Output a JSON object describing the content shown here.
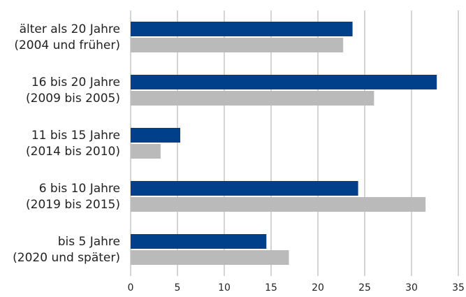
{
  "chart_data": {
    "type": "hbar",
    "categories": [
      [
        "älter als 20 Jahre",
        "(2004 und früher)"
      ],
      [
        "16 bis 20 Jahre",
        "(2009 bis 2005)"
      ],
      [
        "11 bis 15 Jahre",
        "(2014 bis 2010)"
      ],
      [
        "6 bis 10 Jahre",
        "(2019 bis 2015)"
      ],
      [
        "bis 5 Jahre",
        "(2020 und später)"
      ]
    ],
    "series": [
      {
        "color": "#003f8a",
        "values": [
          23.7,
          32.7,
          5.3,
          24.3,
          14.5
        ]
      },
      {
        "color": "#bababa",
        "values": [
          22.7,
          26.0,
          3.2,
          31.5,
          16.9
        ]
      }
    ],
    "xlim": [
      0,
      35
    ],
    "xticks": [
      0,
      5,
      10,
      15,
      20,
      25,
      30,
      35
    ],
    "grid": true
  }
}
